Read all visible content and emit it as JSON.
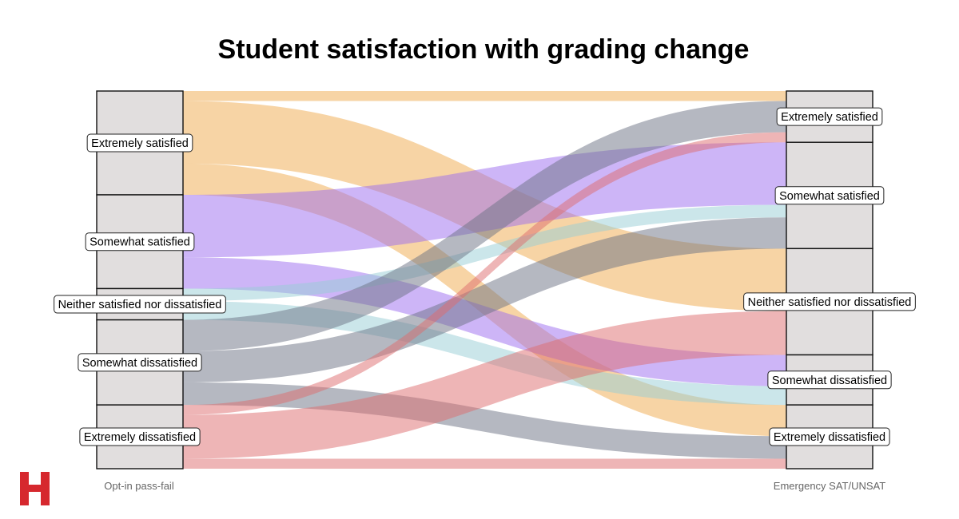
{
  "chart_data": {
    "type": "alluvial",
    "title": "Student satisfaction with grading change",
    "axes": [
      "Opt-in pass-fail",
      "Emergency SAT/UNSAT"
    ],
    "categories": [
      "Extremely satisfied",
      "Somewhat satisfied",
      "Neither satisfied nor dissatisfied",
      "Somewhat dissatisfied",
      "Extremely dissatisfied"
    ],
    "colors": {
      "Extremely satisfied": "#f0a94c",
      "Somewhat satisfied": "#9b6cf0",
      "Neither satisfied nor dissatisfied": "#97cdd6",
      "Somewhat dissatisfied": "#6b7284",
      "Extremely dissatisfied": "#de6b6e"
    },
    "flows": [
      {
        "from": "Extremely satisfied",
        "to": "Extremely satisfied",
        "value": 8
      },
      {
        "from": "Extremely satisfied",
        "to": "Neither satisfied nor dissatisfied",
        "value": 50
      },
      {
        "from": "Extremely satisfied",
        "to": "Extremely dissatisfied",
        "value": 25
      },
      {
        "from": "Somewhat satisfied",
        "to": "Somewhat satisfied",
        "value": 50
      },
      {
        "from": "Somewhat satisfied",
        "to": "Somewhat dissatisfied",
        "value": 25
      },
      {
        "from": "Neither satisfied nor dissatisfied",
        "to": "Somewhat satisfied",
        "value": 10
      },
      {
        "from": "Neither satisfied nor dissatisfied",
        "to": "Somewhat dissatisfied",
        "value": 15
      },
      {
        "from": "Somewhat dissatisfied",
        "to": "Extremely satisfied",
        "value": 25
      },
      {
        "from": "Somewhat dissatisfied",
        "to": "Somewhat satisfied",
        "value": 25
      },
      {
        "from": "Somewhat dissatisfied",
        "to": "Extremely dissatisfied",
        "value": 18
      },
      {
        "from": "Extremely dissatisfied",
        "to": "Extremely satisfied",
        "value": 8
      },
      {
        "from": "Extremely dissatisfied",
        "to": "Neither satisfied nor dissatisfied",
        "value": 35
      },
      {
        "from": "Extremely dissatisfied",
        "to": "Extremely dissatisfied",
        "value": 8
      }
    ]
  },
  "logo": {
    "letter": "H",
    "color": "#d6282e"
  }
}
